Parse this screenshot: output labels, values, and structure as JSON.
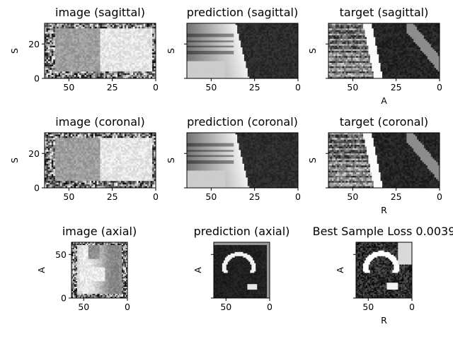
{
  "figure": {
    "background": "#ffffff"
  },
  "chart_data": [
    {
      "type": "heatmap",
      "title": "image (sagittal)",
      "ylabel": "S",
      "xlabel": "",
      "xlim": [
        64,
        0
      ],
      "ylim": [
        0,
        32
      ],
      "xticks": [
        50,
        25,
        0
      ],
      "yticks": [
        0,
        20
      ],
      "show_yticklabels": true,
      "colormap": "gray",
      "content": "noisy"
    },
    {
      "type": "heatmap",
      "title": "prediction (sagittal)",
      "ylabel": "S",
      "xlabel": "",
      "xlim": [
        64,
        0
      ],
      "ylim": [
        0,
        32
      ],
      "xticks": [
        50,
        25,
        0
      ],
      "yticks": [
        0,
        20
      ],
      "show_yticklabels": false,
      "colormap": "gray",
      "content": "prediction"
    },
    {
      "type": "heatmap",
      "title": "target (sagittal)",
      "ylabel": "S",
      "xlabel": "A",
      "xlim": [
        64,
        0
      ],
      "ylim": [
        0,
        32
      ],
      "xticks": [
        50,
        25,
        0
      ],
      "yticks": [
        0,
        20
      ],
      "show_yticklabels": false,
      "colormap": "gray",
      "content": "target"
    },
    {
      "type": "heatmap",
      "title": "image (coronal)",
      "ylabel": "S",
      "xlabel": "",
      "xlim": [
        64,
        0
      ],
      "ylim": [
        0,
        32
      ],
      "xticks": [
        50,
        25,
        0
      ],
      "yticks": [
        0,
        20
      ],
      "show_yticklabels": true,
      "colormap": "gray",
      "content": "noisy"
    },
    {
      "type": "heatmap",
      "title": "prediction (coronal)",
      "ylabel": "S",
      "xlabel": "",
      "xlim": [
        64,
        0
      ],
      "ylim": [
        0,
        32
      ],
      "xticks": [
        50,
        25,
        0
      ],
      "yticks": [
        0,
        20
      ],
      "show_yticklabels": false,
      "colormap": "gray",
      "content": "prediction"
    },
    {
      "type": "heatmap",
      "title": "target (coronal)",
      "ylabel": "S",
      "xlabel": "R",
      "xlim": [
        64,
        0
      ],
      "ylim": [
        0,
        32
      ],
      "xticks": [
        50,
        25,
        0
      ],
      "yticks": [
        0,
        20
      ],
      "show_yticklabels": false,
      "colormap": "gray",
      "content": "target"
    },
    {
      "type": "heatmap",
      "title": "image (axial)",
      "ylabel": "A",
      "xlabel": "",
      "xlim": [
        64,
        0
      ],
      "ylim": [
        0,
        64
      ],
      "xticks": [
        50,
        0
      ],
      "yticks": [
        0,
        50
      ],
      "show_yticklabels": true,
      "colormap": "gray",
      "content": "noisy"
    },
    {
      "type": "heatmap",
      "title": "prediction (axial)",
      "ylabel": "A",
      "xlabel": "",
      "xlim": [
        64,
        0
      ],
      "ylim": [
        0,
        64
      ],
      "xticks": [
        50,
        0
      ],
      "yticks": [
        0,
        50
      ],
      "show_yticklabels": false,
      "colormap": "gray",
      "content": "prediction"
    },
    {
      "type": "heatmap",
      "title": "Best Sample Loss 0.0039",
      "ylabel": "A",
      "xlabel": "R",
      "xlim": [
        64,
        0
      ],
      "ylim": [
        0,
        64
      ],
      "xticks": [
        50,
        0
      ],
      "yticks": [
        0,
        50
      ],
      "show_yticklabels": false,
      "colormap": "gray",
      "content": "target"
    }
  ]
}
